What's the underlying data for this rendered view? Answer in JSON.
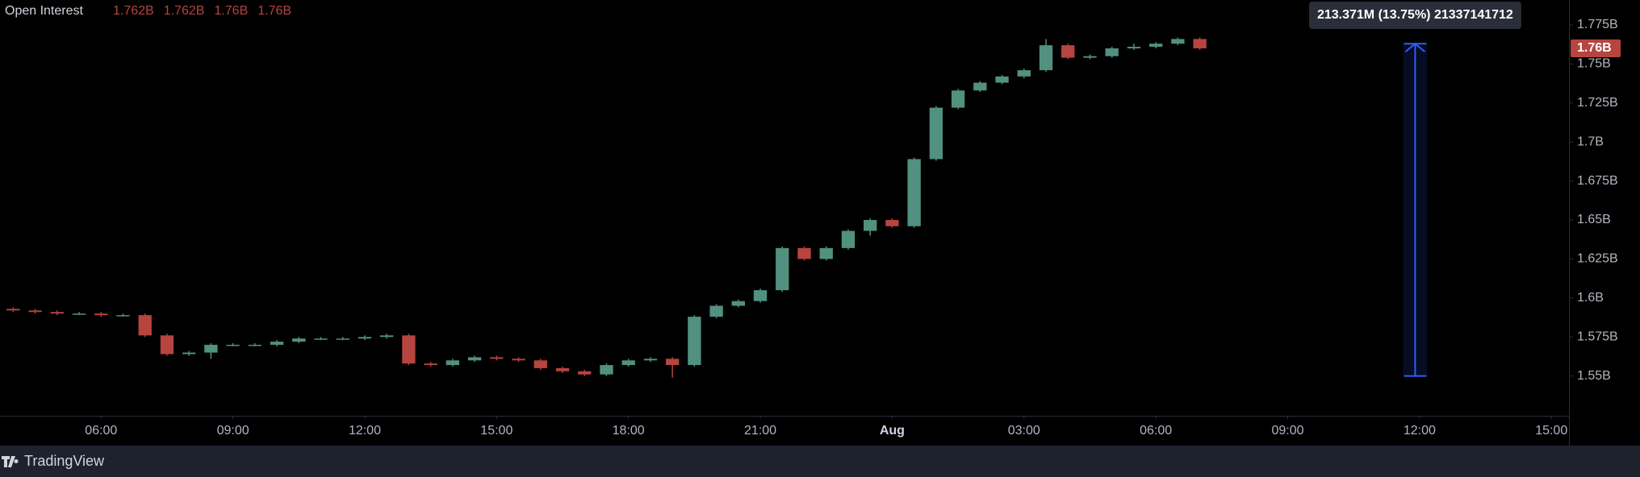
{
  "chart_data": {
    "type": "candlestick",
    "title": "Open Interest",
    "legend_values": [
      "1.762B",
      "1.762B",
      "1.76B",
      "1.76B"
    ],
    "up_color": "#52907f",
    "down_color": "#b6443f",
    "x": [
      4.0,
      4.5,
      5.0,
      5.5,
      6.0,
      6.5,
      7.0,
      7.5,
      8.0,
      8.5,
      9.0,
      9.5,
      10.0,
      10.5,
      11.0,
      11.5,
      12.0,
      12.5,
      13.0,
      13.5,
      14.0,
      14.5,
      15.0,
      15.5,
      16.0,
      16.5,
      17.0,
      17.5,
      18.0,
      18.5,
      19.0,
      19.5,
      20.0,
      20.5,
      21.0,
      21.5,
      22.0,
      22.5,
      23.0,
      23.5,
      24.0,
      24.5,
      25.0,
      25.5,
      26.0,
      26.5,
      27.0,
      27.5,
      28.0,
      28.5,
      29.0,
      29.5,
      30.0,
      30.5,
      31.0
    ],
    "open": [
      1.593,
      1.592,
      1.591,
      1.59,
      1.59,
      1.589,
      1.589,
      1.576,
      1.564,
      1.565,
      1.57,
      1.57,
      1.57,
      1.572,
      1.574,
      1.574,
      1.574,
      1.575,
      1.576,
      1.558,
      1.557,
      1.56,
      1.562,
      1.561,
      1.56,
      1.555,
      1.553,
      1.551,
      1.557,
      1.56,
      1.561,
      1.557,
      1.588,
      1.595,
      1.598,
      1.605,
      1.632,
      1.625,
      1.632,
      1.643,
      1.65,
      1.646,
      1.689,
      1.722,
      1.733,
      1.738,
      1.742,
      1.746,
      1.762,
      1.754,
      1.755,
      1.76,
      1.761,
      1.763,
      1.766
    ],
    "high": [
      1.594,
      1.593,
      1.592,
      1.591,
      1.591,
      1.59,
      1.59,
      1.577,
      1.566,
      1.571,
      1.571,
      1.571,
      1.573,
      1.575,
      1.575,
      1.575,
      1.576,
      1.577,
      1.577,
      1.559,
      1.561,
      1.563,
      1.563,
      1.562,
      1.561,
      1.556,
      1.554,
      1.558,
      1.561,
      1.562,
      1.562,
      1.589,
      1.596,
      1.599,
      1.606,
      1.633,
      1.633,
      1.633,
      1.644,
      1.651,
      1.651,
      1.69,
      1.723,
      1.734,
      1.739,
      1.743,
      1.747,
      1.766,
      1.763,
      1.756,
      1.761,
      1.763,
      1.764,
      1.767,
      1.767
    ],
    "low": [
      1.591,
      1.59,
      1.589,
      1.589,
      1.588,
      1.588,
      1.575,
      1.563,
      1.563,
      1.561,
      1.569,
      1.569,
      1.569,
      1.571,
      1.573,
      1.573,
      1.573,
      1.574,
      1.557,
      1.556,
      1.556,
      1.559,
      1.56,
      1.559,
      1.554,
      1.552,
      1.55,
      1.55,
      1.556,
      1.559,
      1.549,
      1.556,
      1.587,
      1.594,
      1.597,
      1.604,
      1.624,
      1.624,
      1.631,
      1.64,
      1.645,
      1.645,
      1.688,
      1.721,
      1.732,
      1.737,
      1.741,
      1.745,
      1.753,
      1.753,
      1.754,
      1.759,
      1.76,
      1.762,
      1.759
    ],
    "close": [
      1.592,
      1.591,
      1.59,
      1.59,
      1.589,
      1.589,
      1.576,
      1.564,
      1.565,
      1.57,
      1.57,
      1.57,
      1.572,
      1.574,
      1.574,
      1.574,
      1.575,
      1.576,
      1.558,
      1.557,
      1.56,
      1.562,
      1.561,
      1.56,
      1.555,
      1.553,
      1.551,
      1.557,
      1.56,
      1.561,
      1.557,
      1.588,
      1.595,
      1.598,
      1.605,
      1.632,
      1.625,
      1.632,
      1.643,
      1.65,
      1.646,
      1.689,
      1.722,
      1.733,
      1.738,
      1.742,
      1.746,
      1.762,
      1.754,
      1.755,
      1.76,
      1.761,
      1.763,
      1.766,
      1.76
    ],
    "xlim": [
      3.7,
      39.4
    ],
    "xticks": [
      {
        "value": 6,
        "label": "06:00"
      },
      {
        "value": 9,
        "label": "09:00"
      },
      {
        "value": 12,
        "label": "12:00"
      },
      {
        "value": 15,
        "label": "15:00"
      },
      {
        "value": 18,
        "label": "18:00"
      },
      {
        "value": 21,
        "label": "21:00"
      },
      {
        "value": 24,
        "label": "Aug"
      },
      {
        "value": 27,
        "label": "03:00"
      },
      {
        "value": 30,
        "label": "06:00"
      },
      {
        "value": 33,
        "label": "09:00"
      },
      {
        "value": 36,
        "label": "12:00"
      },
      {
        "value": 39,
        "label": "15:00"
      }
    ],
    "ylim": [
      1.5245,
      1.791
    ],
    "yticks": [
      {
        "value": 1.55,
        "label": "1.55B"
      },
      {
        "value": 1.575,
        "label": "1.575B"
      },
      {
        "value": 1.6,
        "label": "1.6B"
      },
      {
        "value": 1.625,
        "label": "1.625B"
      },
      {
        "value": 1.65,
        "label": "1.65B"
      },
      {
        "value": 1.675,
        "label": "1.675B"
      },
      {
        "value": 1.7,
        "label": "1.7B"
      },
      {
        "value": 1.725,
        "label": "1.725B"
      },
      {
        "value": 1.75,
        "label": "1.75B"
      },
      {
        "value": 1.775,
        "label": "1.775B"
      }
    ],
    "last_price": {
      "value": 1.76,
      "label": "1.76B"
    },
    "measure": {
      "x": 35.9,
      "from": 1.55,
      "to": 1.763,
      "label": "213.371M (13.75%) 21337141712",
      "color": "#2f5bff"
    },
    "brand": "TradingView"
  }
}
